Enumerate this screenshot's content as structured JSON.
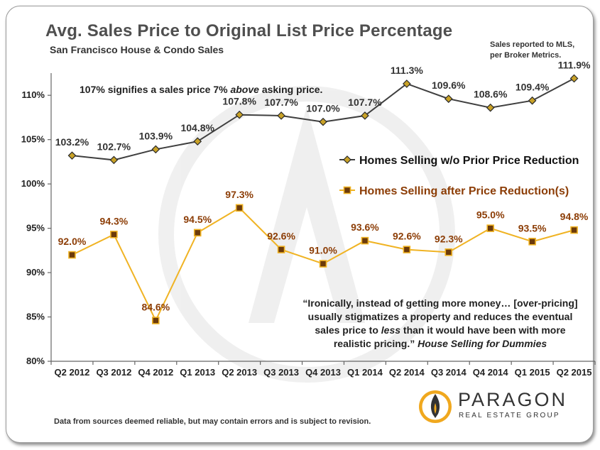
{
  "header": {
    "title": "Avg. Sales Price to Original List Price Percentage",
    "subtitle": "San Francisco House & Condo Sales",
    "source": "Sales reported to MLS,\nper Broker Metrics."
  },
  "note": {
    "before": "107% signifies a sales price 7% ",
    "emph": "above",
    "after": " asking price."
  },
  "quote": {
    "p1": "“Ironically, instead of getting more money… [over-pricing] usually stigmatizes a property and reduces the eventual sales price to ",
    "emph": "less",
    "p2": " than it would have been with more realistic pricing.” ",
    "source": "House Selling for Dummies"
  },
  "footer": {
    "disclaimer": "Data from sources deemed reliable, but may contain errors and is subject to revision.",
    "logo_name": "PARAGON",
    "logo_tagline": "REAL ESTATE GROUP"
  },
  "colors": {
    "series_a": "#3f3f3f",
    "series_a_marker": "#c9a227",
    "series_b": "#f0b323",
    "series_b_marker": "#6b3a0b",
    "label_b": "#8c3d06",
    "logo_accent": "#f0a81e"
  },
  "icons": {
    "logo": "paragon-flame-logo",
    "watermark": "paragon-watermark-logo"
  },
  "chart_data": {
    "type": "line",
    "title": "Avg. Sales Price to Original List Price Percentage",
    "subtitle": "San Francisco House & Condo Sales",
    "xlabel": "",
    "ylabel": "",
    "categories": [
      "Q2 2012",
      "Q3 2012",
      "Q4 2012",
      "Q1 2013",
      "Q2 2013",
      "Q3 2013",
      "Q4 2013",
      "Q1 2014",
      "Q2 2014",
      "Q3 2014",
      "Q4 2014",
      "Q1 2015",
      "Q2 2015"
    ],
    "y_ticks": [
      "80%",
      "85%",
      "90%",
      "95%",
      "100%",
      "105%",
      "110%"
    ],
    "ylim": [
      80,
      112.5
    ],
    "grid": false,
    "legend_position": "right-center",
    "series": [
      {
        "name": "Homes Selling w/o Prior Price Reduction",
        "values": [
          103.2,
          102.7,
          103.9,
          104.8,
          107.8,
          107.7,
          107.0,
          107.7,
          111.3,
          109.6,
          108.6,
          109.4,
          111.9
        ],
        "labels": [
          "103.2%",
          "102.7%",
          "103.9%",
          "104.8%",
          "107.8%",
          "107.7%",
          "107.0%",
          "107.7%",
          "111.3%",
          "109.6%",
          "108.6%",
          "109.4%",
          "111.9%"
        ],
        "marker": "diamond"
      },
      {
        "name": "Homes Selling after Price Reduction(s)",
        "values": [
          92.0,
          94.3,
          84.6,
          94.5,
          97.3,
          92.6,
          91.0,
          93.6,
          92.6,
          92.3,
          95.0,
          93.5,
          94.8
        ],
        "labels": [
          "92.0%",
          "94.3%",
          "84.6%",
          "94.5%",
          "97.3%",
          "92.6%",
          "91.0%",
          "93.6%",
          "92.6%",
          "92.3%",
          "95.0%",
          "93.5%",
          "94.8%"
        ],
        "marker": "square"
      }
    ]
  }
}
